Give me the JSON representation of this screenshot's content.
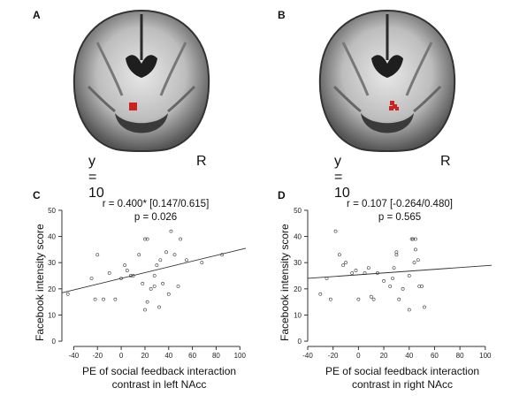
{
  "panels": [
    {
      "letter": "A",
      "y_label": "y = 10",
      "side_label": "R"
    },
    {
      "letter": "B",
      "y_label": "y = 10",
      "side_label": "R"
    }
  ],
  "roi_color": "#cc2222",
  "chart_data": [
    {
      "type": "scatter",
      "panel": "C",
      "stat_line1": "r = 0.400* [0.147/0.615]",
      "stat_line2": "p = 0.026",
      "xlabel_line1": "PE of social feedback interaction",
      "xlabel_line2": "contrast in left NAcc",
      "ylabel": "Facebook intensity score",
      "xlim": [
        -50,
        105
      ],
      "ylim": [
        -2,
        52
      ],
      "xticks": [
        -40,
        -20,
        0,
        20,
        40,
        60,
        80,
        100
      ],
      "yticks": [
        0,
        10,
        20,
        30,
        40,
        50
      ],
      "fit": {
        "x0": -50,
        "y0": 18.5,
        "x1": 105,
        "y1": 35.5
      },
      "points": [
        [
          -45,
          18
        ],
        [
          -25,
          24
        ],
        [
          -22,
          16
        ],
        [
          -20,
          33
        ],
        [
          -15,
          16
        ],
        [
          -10,
          26
        ],
        [
          -5,
          16
        ],
        [
          0,
          24
        ],
        [
          3,
          29
        ],
        [
          5,
          27
        ],
        [
          8,
          25
        ],
        [
          10,
          25
        ],
        [
          15,
          33
        ],
        [
          18,
          22
        ],
        [
          20,
          39
        ],
        [
          22,
          39
        ],
        [
          22,
          15
        ],
        [
          20,
          12
        ],
        [
          25,
          20
        ],
        [
          28,
          21
        ],
        [
          28,
          25
        ],
        [
          30,
          29
        ],
        [
          32,
          13
        ],
        [
          33,
          31
        ],
        [
          35,
          22
        ],
        [
          38,
          34
        ],
        [
          40,
          18
        ],
        [
          42,
          42
        ],
        [
          45,
          33
        ],
        [
          48,
          21
        ],
        [
          50,
          39
        ],
        [
          55,
          31
        ],
        [
          68,
          30
        ],
        [
          85,
          33
        ]
      ]
    },
    {
      "type": "scatter",
      "panel": "D",
      "stat_line1": "r = 0.107 [-0.264/0.480]",
      "stat_line2": "p = 0.565",
      "xlabel_line1": "PE of social feedback interaction",
      "xlabel_line2": "contrast in right NAcc",
      "ylabel": "Facebook intensity score",
      "xlim": [
        -40,
        105
      ],
      "ylim": [
        -2,
        52
      ],
      "xticks": [
        -40,
        -20,
        0,
        20,
        40,
        60,
        80,
        100
      ],
      "yticks": [
        0,
        10,
        20,
        30,
        40,
        50
      ],
      "fit": {
        "x0": -40,
        "y0": 24,
        "x1": 105,
        "y1": 29
      },
      "points": [
        [
          -30,
          18
        ],
        [
          -25,
          24
        ],
        [
          -22,
          16
        ],
        [
          -18,
          42
        ],
        [
          -15,
          33
        ],
        [
          -12,
          29
        ],
        [
          -10,
          30
        ],
        [
          -5,
          26
        ],
        [
          -2,
          27
        ],
        [
          0,
          16
        ],
        [
          5,
          26
        ],
        [
          8,
          28
        ],
        [
          10,
          17
        ],
        [
          12,
          16
        ],
        [
          15,
          26
        ],
        [
          20,
          23
        ],
        [
          25,
          21
        ],
        [
          27,
          24
        ],
        [
          28,
          28
        ],
        [
          30,
          33
        ],
        [
          30,
          34
        ],
        [
          32,
          16
        ],
        [
          35,
          20
        ],
        [
          40,
          12
        ],
        [
          40,
          25
        ],
        [
          42,
          39
        ],
        [
          43,
          39
        ],
        [
          44,
          30
        ],
        [
          45,
          35
        ],
        [
          47,
          31
        ],
        [
          48,
          21
        ],
        [
          50,
          21
        ],
        [
          52,
          13
        ],
        [
          45,
          39
        ]
      ]
    }
  ]
}
